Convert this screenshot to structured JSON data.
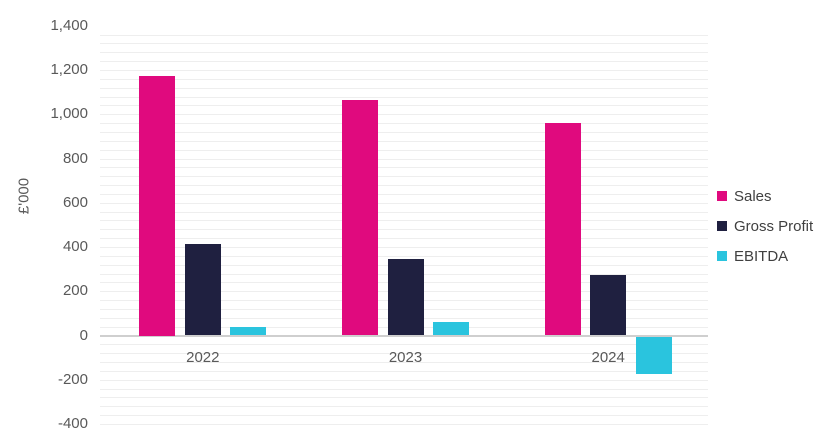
{
  "chart_data": {
    "type": "bar",
    "title": "",
    "ylabel": "£'000",
    "xlabel": "",
    "categories": [
      "2022",
      "2023",
      "2024"
    ],
    "series": [
      {
        "name": "Sales",
        "color": "#E00A7E",
        "values": [
          1175,
          1065,
          960
        ]
      },
      {
        "name": "Gross Profit",
        "color": "#1F2040",
        "values": [
          415,
          345,
          275
        ]
      },
      {
        "name": "EBITDA",
        "color": "#2AC4DE",
        "values": [
          40,
          60,
          -170
        ]
      }
    ],
    "ylim": [
      -400,
      1400
    ],
    "y_tick_step": 200,
    "y_minor_gridline_step": 40,
    "y_tick_labels": [
      "-400",
      "-200",
      "0",
      "200",
      "400",
      "600",
      "800",
      "1,000",
      "1,200",
      "1,400"
    ],
    "grid": true,
    "legend_position": "right"
  },
  "colors": {
    "background": "#FFFFFF",
    "gridline": "#EEEEEE",
    "axis_line": "#CFCFCF",
    "tick_text": "#595959",
    "legend_text": "#404040"
  }
}
